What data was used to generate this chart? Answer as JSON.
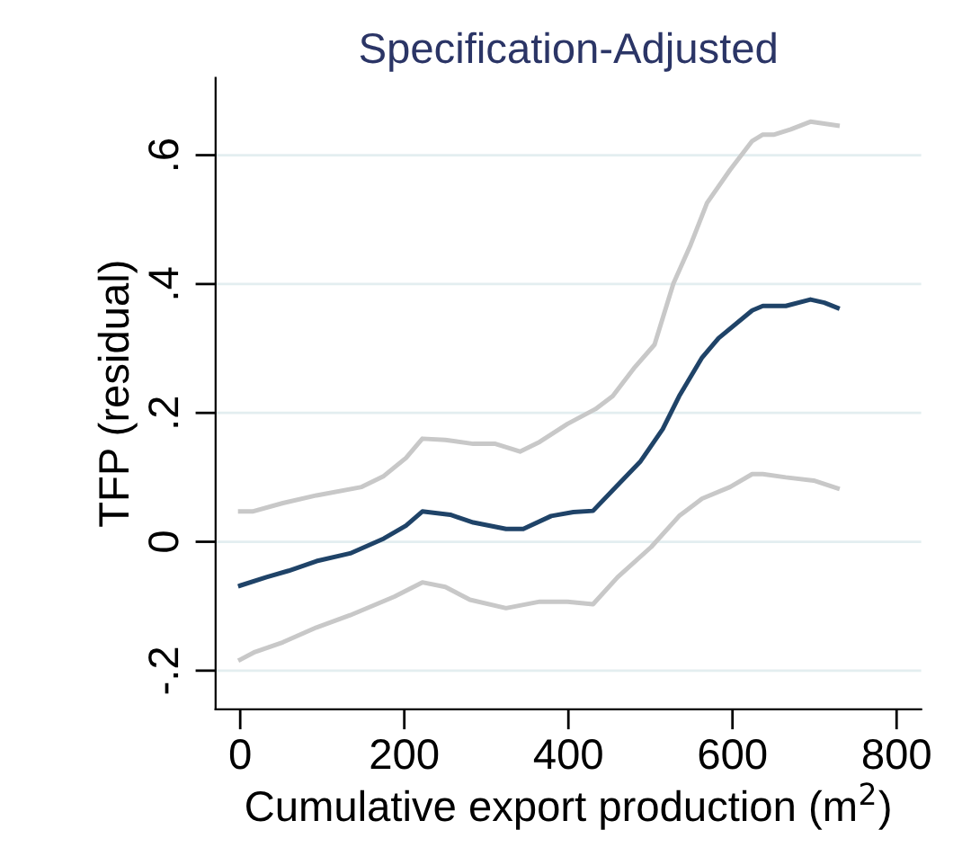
{
  "chart_data": {
    "type": "line",
    "title": "Specification-Adjusted",
    "xlabel": "Cumulative export production (m$^{2}$)",
    "ylabel": "TFP (residual)",
    "xlim": [
      -30,
      830
    ],
    "ylim": [
      -0.26,
      0.72
    ],
    "xticks": [
      0,
      200,
      400,
      600,
      800
    ],
    "yticks": [
      {
        "value": -0.2,
        "label": "-.2"
      },
      {
        "value": 0,
        "label": "0"
      },
      {
        "value": 0.2,
        "label": ".2"
      },
      {
        "value": 0.4,
        "label": ".4"
      },
      {
        "value": 0.6,
        "label": ".6"
      }
    ],
    "grid": "y",
    "marker": "none",
    "line_style": "solid",
    "series": [
      {
        "color": "#c8c8c8",
        "x": [
          0,
          15,
          52,
          93,
          148,
          175,
          202,
          222,
          250,
          284,
          311,
          341,
          365,
          399,
          433,
          454,
          481,
          505,
          528,
          549,
          569,
          597,
          624,
          637,
          651,
          671,
          695,
          728
        ],
        "values": [
          0.047,
          0.047,
          0.06,
          0.072,
          0.085,
          0.102,
          0.13,
          0.16,
          0.158,
          0.152,
          0.152,
          0.14,
          0.155,
          0.183,
          0.206,
          0.226,
          0.271,
          0.306,
          0.401,
          0.461,
          0.526,
          0.577,
          0.622,
          0.632,
          0.632,
          0.64,
          0.652,
          0.646
        ]
      },
      {
        "color": "#c8c8c8",
        "x": [
          0,
          18,
          52,
          93,
          134,
          188,
          222,
          250,
          280,
          324,
          365,
          399,
          430,
          460,
          501,
          535,
          563,
          597,
          624,
          637,
          665,
          699,
          728
        ],
        "values": [
          -0.183,
          -0.171,
          -0.156,
          -0.133,
          -0.114,
          -0.085,
          -0.063,
          -0.07,
          -0.09,
          -0.103,
          -0.093,
          -0.093,
          -0.097,
          -0.055,
          -0.008,
          0.04,
          0.067,
          0.085,
          0.105,
          0.105,
          0.1,
          0.095,
          0.083
        ]
      },
      {
        "color": "#1f4368",
        "x": [
          0,
          32,
          59,
          93,
          134,
          175,
          202,
          222,
          256,
          284,
          324,
          345,
          379,
          406,
          430,
          454,
          488,
          515,
          535,
          563,
          583,
          624,
          637,
          665,
          695,
          712,
          728
        ],
        "values": [
          -0.068,
          -0.055,
          -0.045,
          -0.03,
          -0.018,
          0.005,
          0.025,
          0.047,
          0.042,
          0.03,
          0.02,
          0.02,
          0.04,
          0.046,
          0.048,
          0.08,
          0.125,
          0.175,
          0.226,
          0.286,
          0.316,
          0.359,
          0.366,
          0.366,
          0.376,
          0.371,
          0.363
        ]
      }
    ]
  }
}
